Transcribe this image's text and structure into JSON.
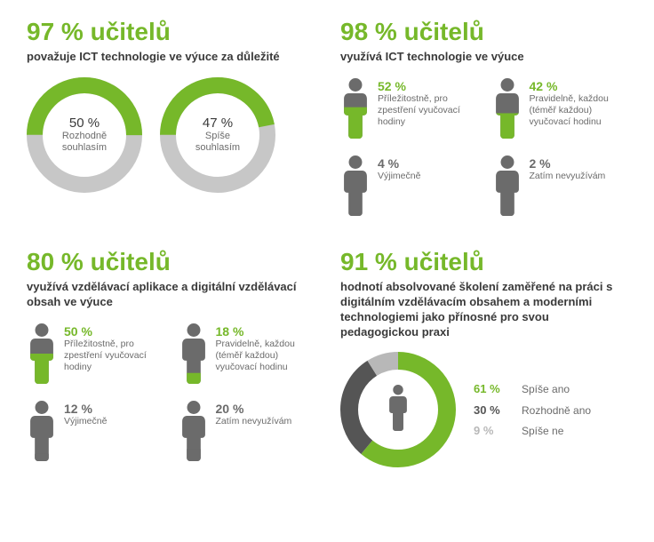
{
  "colors": {
    "green": "#76b82a",
    "gray": "#c7c7c7",
    "iconGray": "#6b6b6b",
    "darkGray": "#555555",
    "lightGray": "#b8b8b8"
  },
  "q1": {
    "headline": "97 % učitelů",
    "sub": "považuje ICT technologie ve výuce za důležité",
    "donuts": [
      {
        "pct": 50,
        "pctLabel": "50 %",
        "label": "Rozhodně souhlasím"
      },
      {
        "pct": 47,
        "pctLabel": "47 %",
        "label": "Spíše souhlasím"
      }
    ],
    "donut_thickness": 18
  },
  "q2": {
    "headline": "98 % učitelů",
    "sub": "využívá ICT technologie ve výuce",
    "items": [
      {
        "pct": 52,
        "pctLabel": "52 %",
        "label": "Příležitostně, pro zpestření vyučovací hodiny",
        "color": "green"
      },
      {
        "pct": 42,
        "pctLabel": "42 %",
        "label": "Pravidelně, každou (téměř každou) vyučovací hodinu",
        "color": "green"
      },
      {
        "pct": 4,
        "pctLabel": "4 %",
        "label": "Výjimečně",
        "color": "gray"
      },
      {
        "pct": 2,
        "pctLabel": "2 %",
        "label": "Zatím nevyužívám",
        "color": "gray"
      }
    ]
  },
  "q3": {
    "headline": "80 % učitelů",
    "sub": "využívá vzdělávací aplikace a digitální vzdělávací obsah ve výuce",
    "items": [
      {
        "pct": 50,
        "pctLabel": "50 %",
        "label": "Příležitostně, pro zpestření vyučovací hodiny",
        "color": "green"
      },
      {
        "pct": 18,
        "pctLabel": "18 %",
        "label": "Pravidelně, každou (téměř každou) vyučovací hodinu",
        "color": "green"
      },
      {
        "pct": 12,
        "pctLabel": "12 %",
        "label": "Výjimečně",
        "color": "gray"
      },
      {
        "pct": 20,
        "pctLabel": "20 %",
        "label": "Zatím nevyužívám",
        "color": "gray"
      }
    ]
  },
  "q4": {
    "headline": "91 % učitelů",
    "sub": "hodnotí absolvované školení zaměřené na práci s digitálním vzdělávacím obsahem a moderními technologiemi jako přínosné pro svou pedagogickou praxi",
    "donut": {
      "segments": [
        {
          "pct": 61,
          "pctLabel": "61 %",
          "label": "Spíše ano",
          "color": "#76b82a"
        },
        {
          "pct": 30,
          "pctLabel": "30 %",
          "label": "Rozhodně ano",
          "color": "#555555"
        },
        {
          "pct": 9,
          "pctLabel": "9 %",
          "label": "Spíše ne",
          "color": "#b8b8b8"
        }
      ],
      "thickness": 20
    }
  }
}
